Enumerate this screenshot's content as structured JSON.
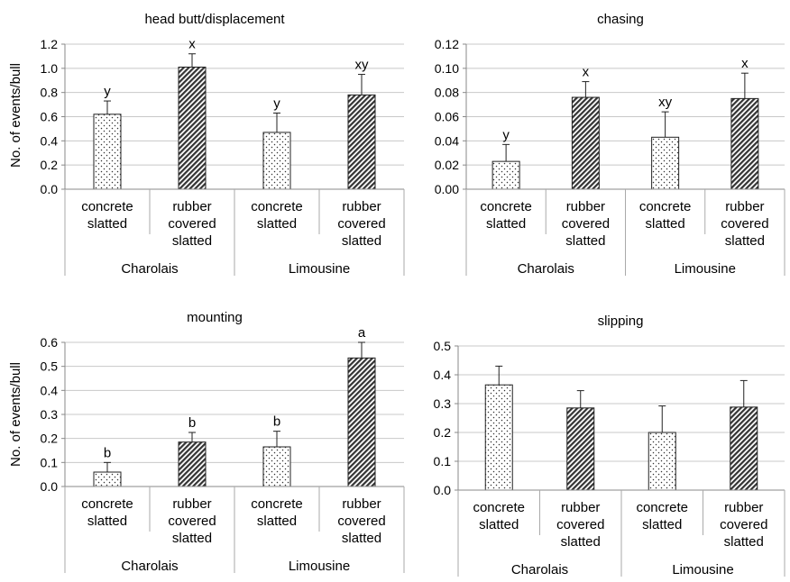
{
  "figure": {
    "ylabel": "No. of events/bull",
    "category_labels": [
      [
        "concrete",
        "slatted"
      ],
      [
        "rubber",
        "covered",
        "slatted"
      ]
    ],
    "group_labels": [
      "Charolais",
      "Limousine"
    ]
  },
  "chart_data": [
    {
      "type": "bar",
      "title": "head butt/displacement",
      "ylabel": "No. of events/bull",
      "ylim": [
        0,
        1.2
      ],
      "ytick_labels": [
        "0.0",
        "0.2",
        "0.4",
        "0.6",
        "0.8",
        "1.0",
        "1.2"
      ],
      "categories": [
        "Charolais concrete slatted",
        "Charolais rubber covered slatted",
        "Limousine concrete slatted",
        "Limousine rubber covered slatted"
      ],
      "values": [
        0.62,
        1.01,
        0.47,
        0.78
      ],
      "errors": [
        0.11,
        0.11,
        0.16,
        0.17
      ],
      "annotations": [
        "y",
        "x",
        "y",
        "xy"
      ]
    },
    {
      "type": "bar",
      "title": "chasing",
      "ylabel": "",
      "ylim": [
        0,
        0.12
      ],
      "ytick_labels": [
        "0.00",
        "0.02",
        "0.04",
        "0.06",
        "0.08",
        "0.10",
        "0.12"
      ],
      "categories": [
        "Charolais concrete slatted",
        "Charolais rubber covered slatted",
        "Limousine concrete slatted",
        "Limousine rubber covered slatted"
      ],
      "values": [
        0.023,
        0.076,
        0.043,
        0.075
      ],
      "errors": [
        0.014,
        0.013,
        0.021,
        0.021
      ],
      "annotations": [
        "y",
        "x",
        "xy",
        "x"
      ]
    },
    {
      "type": "bar",
      "title": "mounting",
      "ylabel": "No. of events/bull",
      "ylim": [
        0,
        0.6
      ],
      "ytick_labels": [
        "0.0",
        "0.1",
        "0.2",
        "0.3",
        "0.4",
        "0.5",
        "0.6"
      ],
      "categories": [
        "Charolais concrete slatted",
        "Charolais rubber covered slatted",
        "Limousine concrete slatted",
        "Limousine rubber covered slatted"
      ],
      "values": [
        0.06,
        0.185,
        0.165,
        0.535
      ],
      "errors": [
        0.04,
        0.04,
        0.065,
        0.065
      ],
      "annotations": [
        "b",
        "b",
        "b",
        "a"
      ]
    },
    {
      "type": "bar",
      "title": "slipping",
      "ylabel": "",
      "ylim": [
        0,
        0.5
      ],
      "ytick_labels": [
        "0.0",
        "0.1",
        "0.2",
        "0.3",
        "0.4",
        "0.5"
      ],
      "categories": [
        "Charolais concrete slatted",
        "Charolais rubber covered slatted",
        "Limousine concrete slatted",
        "Limousine rubber covered slatted"
      ],
      "values": [
        0.365,
        0.285,
        0.2,
        0.288
      ],
      "errors": [
        0.065,
        0.06,
        0.092,
        0.092
      ],
      "annotations": [
        "",
        "",
        "",
        ""
      ]
    }
  ]
}
